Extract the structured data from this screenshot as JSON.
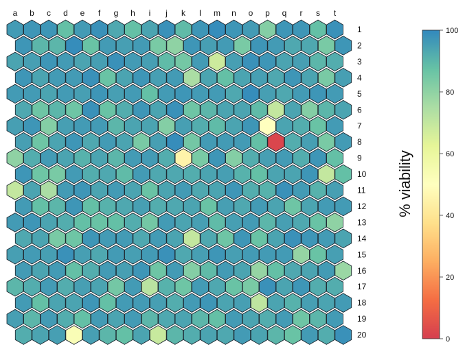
{
  "chart_data": {
    "type": "heatmap",
    "layout": "hexagonal grid, odd rows offset to the right",
    "columns": [
      "a",
      "b",
      "c",
      "d",
      "e",
      "f",
      "g",
      "h",
      "i",
      "j",
      "k",
      "l",
      "m",
      "n",
      "o",
      "p",
      "q",
      "r",
      "s",
      "t"
    ],
    "rows": [
      "1",
      "2",
      "3",
      "4",
      "5",
      "6",
      "7",
      "8",
      "9",
      "10",
      "11",
      "12",
      "13",
      "14",
      "15",
      "16",
      "17",
      "18",
      "19",
      "20"
    ],
    "values": [
      [
        96,
        97,
        97,
        88,
        96,
        98,
        93,
        88,
        94,
        98,
        89,
        97,
        99,
        97,
        96,
        82,
        97,
        97,
        88,
        98
      ],
      [
        97,
        90,
        90,
        99,
        87,
        96,
        95,
        96,
        84,
        80,
        97,
        95,
        96,
        84,
        97,
        96,
        93,
        93,
        84,
        97
      ],
      [
        94,
        95,
        97,
        96,
        94,
        95,
        98,
        96,
        95,
        89,
        85,
        96,
        68,
        95,
        98,
        97,
        94,
        95,
        90,
        92
      ],
      [
        97,
        94,
        96,
        96,
        98,
        87,
        94,
        97,
        95,
        96,
        75,
        94,
        88,
        94,
        95,
        93,
        97,
        94,
        84,
        95
      ],
      [
        96,
        96,
        94,
        96,
        95,
        97,
        95,
        96,
        88,
        96,
        97,
        96,
        96,
        93,
        99,
        95,
        93,
        96,
        97,
        96
      ],
      [
        93,
        86,
        90,
        86,
        98,
        87,
        92,
        97,
        94,
        98,
        86,
        90,
        94,
        94,
        89,
        70,
        94,
        82,
        90,
        94
      ],
      [
        95,
        97,
        82,
        95,
        96,
        96,
        90,
        94,
        94,
        82,
        95,
        92,
        89,
        94,
        97,
        50,
        94,
        92,
        87,
        96
      ],
      [
        95,
        86,
        94,
        97,
        93,
        96,
        94,
        84,
        95,
        99,
        85,
        96,
        96,
        96,
        88,
        2,
        92,
        95,
        84,
        96
      ],
      [
        80,
        92,
        96,
        94,
        91,
        94,
        90,
        96,
        96,
        92,
        45,
        84,
        97,
        82,
        92,
        95,
        96,
        92,
        97,
        88
      ],
      [
        97,
        86,
        84,
        96,
        92,
        93,
        89,
        96,
        93,
        93,
        92,
        94,
        95,
        91,
        88,
        94,
        94,
        97,
        70,
        88
      ],
      [
        70,
        94,
        75,
        96,
        97,
        94,
        96,
        94,
        87,
        94,
        96,
        93,
        94,
        97,
        92,
        91,
        98,
        96,
        91,
        95
      ],
      [
        96,
        88,
        90,
        97,
        88,
        91,
        93,
        95,
        92,
        93,
        94,
        87,
        95,
        93,
        96,
        94,
        86,
        94,
        96,
        96
      ],
      [
        96,
        97,
        94,
        92,
        88,
        87,
        88,
        92,
        85,
        96,
        94,
        95,
        89,
        95,
        96,
        90,
        95,
        93,
        87,
        80
      ],
      [
        93,
        94,
        84,
        86,
        97,
        96,
        96,
        93,
        96,
        94,
        70,
        93,
        86,
        97,
        87,
        94,
        98,
        97,
        96,
        94
      ],
      [
        95,
        96,
        95,
        98,
        95,
        93,
        96,
        95,
        96,
        98,
        93,
        95,
        97,
        95,
        96,
        96,
        96,
        79,
        87,
        95
      ],
      [
        96,
        94,
        96,
        88,
        92,
        96,
        95,
        97,
        86,
        96,
        82,
        89,
        96,
        94,
        79,
        88,
        93,
        94,
        96,
        78
      ],
      [
        90,
        92,
        96,
        92,
        95,
        94,
        85,
        96,
        72,
        91,
        86,
        96,
        93,
        87,
        84,
        98,
        94,
        97,
        92,
        92
      ],
      [
        96,
        88,
        94,
        94,
        97,
        88,
        96,
        96,
        95,
        92,
        96,
        97,
        94,
        95,
        71,
        94,
        91,
        95,
        94,
        96
      ],
      [
        95,
        90,
        96,
        92,
        88,
        96,
        94,
        96,
        90,
        93,
        94,
        90,
        88,
        96,
        94,
        92,
        96,
        86,
        90,
        96
      ],
      [
        92,
        94,
        95,
        53,
        95,
        90,
        88,
        94,
        69,
        90,
        92,
        94,
        93,
        96,
        94,
        90,
        87,
        96,
        92,
        98
      ]
    ],
    "legend": {
      "title": "% viability",
      "ticks": [
        0,
        20,
        40,
        60,
        80,
        100
      ],
      "range": [
        0,
        100
      ],
      "colors": [
        "#d53e4f",
        "#f46d43",
        "#fdae61",
        "#fee08b",
        "#ffffbf",
        "#e6f598",
        "#abdda4",
        "#66c2a5",
        "#3288bd"
      ]
    }
  }
}
